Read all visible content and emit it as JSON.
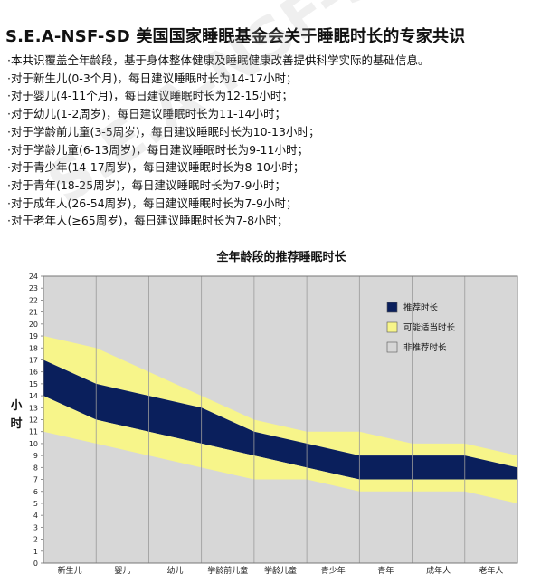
{
  "header": {
    "title": "S.E.A-NSF-SD 美国国家睡眠基金会关于睡眠时长的专家共识"
  },
  "notes": [
    "·本共识覆盖全年龄段，基于身体整体健康及睡眠健康改善提供科学实际的基础信息。",
    "·对于新生儿(0-3个月)，每日建议睡眠时长为14-17小时；",
    "·对于婴儿(4-11个月)，每日建议睡眠时长为12-15小时；",
    "·对于幼儿(1-2周岁)，每日建议睡眠时长为11-14小时；",
    "·对于学龄前儿童(3-5周岁)，每日建议睡眠时长为10-13小时；",
    "·对于学龄儿童(6-13周岁)，每日建议睡眠时长为9-11小时；",
    "·对于青少年(14-17周岁)，每日建议睡眠时长为8-10小时；",
    "·对于青年(18-25周岁)，每日建议睡眠时长为7-9小时；",
    "·对于成年人(26-54周岁)，每日建议睡眠时长为7-9小时；",
    "·对于老年人(≥65周岁)，每日建议睡眠时长为7-8小时；"
  ],
  "watermark": "S.E.A-NSF-SD",
  "colors": {
    "recommended": "#0a1f5c",
    "may_be_appropriate": "#f7f58a",
    "not_recommended": "#d7d7d7",
    "grid": "#9a9a9a"
  },
  "chart_data": {
    "type": "area",
    "title": "全年龄段的推荐睡眠时长",
    "ylabel": "小时",
    "ylim": [
      0,
      24
    ],
    "yticks": [
      0,
      1,
      2,
      3,
      4,
      5,
      6,
      7,
      8,
      9,
      10,
      11,
      12,
      13,
      14,
      15,
      16,
      17,
      18,
      19,
      20,
      21,
      22,
      23,
      24
    ],
    "categories": [
      "新生儿",
      "婴儿",
      "幼儿",
      "学龄前儿童",
      "学龄儿童",
      "青少年",
      "青年",
      "成年人",
      "老年人"
    ],
    "legend_position": "right",
    "legend": [
      "推荐时长",
      "可能适当时长",
      "非推荐时长"
    ],
    "x": [
      0,
      1,
      2,
      3,
      4,
      5,
      6,
      7,
      8,
      9
    ],
    "series": [
      {
        "name": "可能适当时长",
        "role": "appropriate_upper",
        "values": [
          19,
          18,
          16,
          14,
          12,
          11,
          11,
          10,
          10,
          9
        ]
      },
      {
        "name": "推荐时长",
        "role": "recommended_upper",
        "values": [
          17,
          15,
          14,
          13,
          11,
          10,
          9,
          9,
          9,
          8
        ]
      },
      {
        "name": "推荐时长",
        "role": "recommended_lower",
        "values": [
          14,
          12,
          11,
          10,
          9,
          8,
          7,
          7,
          7,
          7
        ]
      },
      {
        "name": "可能适当时长",
        "role": "appropriate_lower",
        "values": [
          11,
          10,
          9,
          8,
          7,
          7,
          6,
          6,
          6,
          5
        ]
      }
    ]
  }
}
